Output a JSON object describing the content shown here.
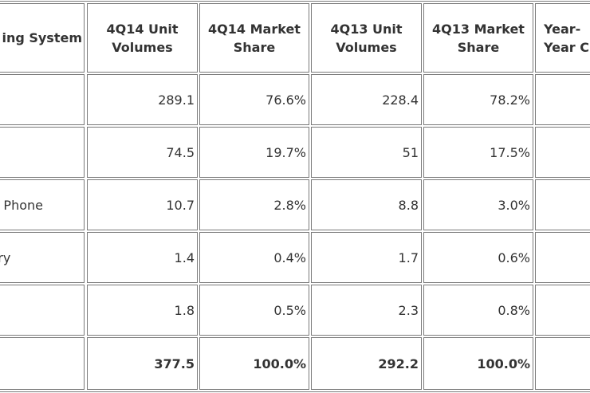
{
  "table": {
    "header": [
      [
        "ing System"
      ],
      [
        "4Q14 Unit",
        "Volumes"
      ],
      [
        "4Q14 Market",
        "Share"
      ],
      [
        "4Q13 Unit",
        "Volumes"
      ],
      [
        "4Q13 Market",
        "Share"
      ],
      [
        "Year-",
        "Year C"
      ]
    ],
    "rows": [
      {
        "cells": [
          "289.1",
          "76.6%",
          "228.4",
          "78.2%"
        ]
      },
      {
        "cells": [
          "74.5",
          "19.7%",
          "51",
          "17.5%"
        ]
      },
      {
        "label": "s Phone",
        "cells": [
          "10.7",
          "2.8%",
          "8.8",
          "3.0%"
        ]
      },
      {
        "label": "rry",
        "cells": [
          "1.4",
          "0.4%",
          "1.7",
          "0.6%"
        ]
      },
      {
        "cells": [
          "1.8",
          "0.5%",
          "2.3",
          "0.8%"
        ]
      },
      {
        "cells": [
          "377.5",
          "100.0%",
          "292.2",
          "100.0%"
        ],
        "bold": true
      }
    ]
  }
}
